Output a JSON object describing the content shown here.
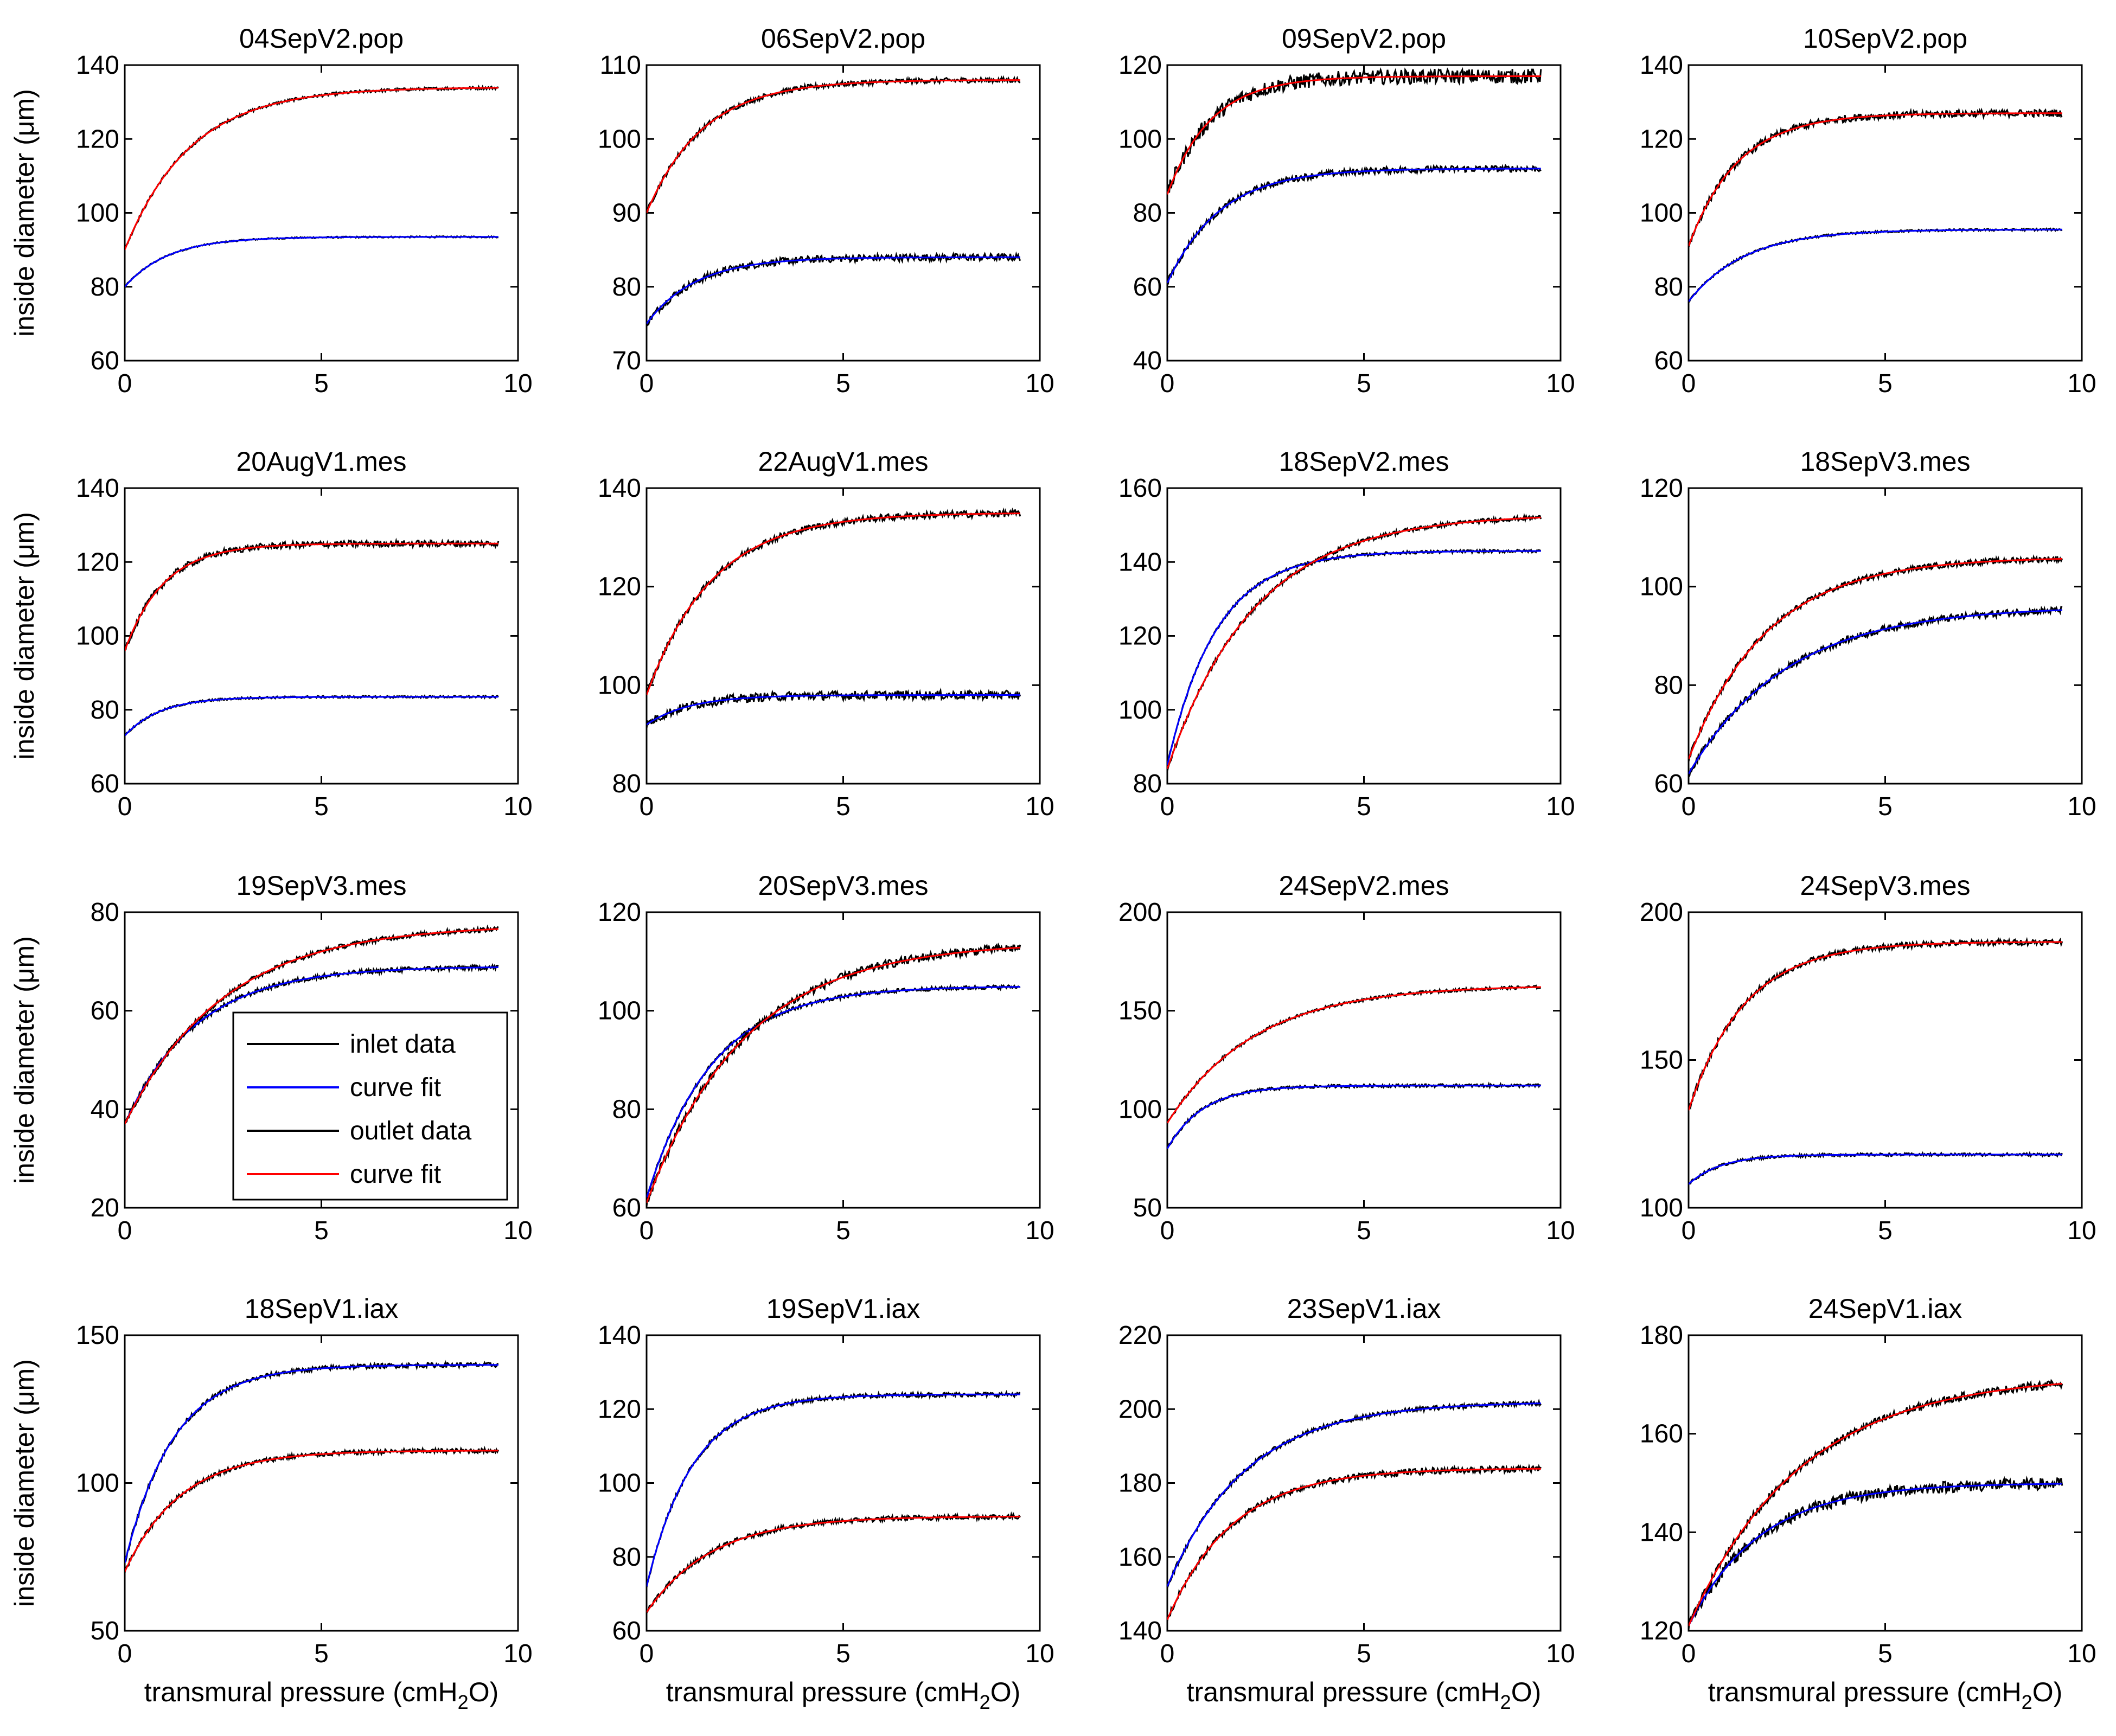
{
  "figure": {
    "ylabel_prefix": "inside diameter (",
    "ylabel_mu": "μ",
    "ylabel_suffix": "m)",
    "xlabel_prefix": "transmural pressure (cmH",
    "xlabel_sub": "2",
    "xlabel_suffix": "O)"
  },
  "colors": {
    "inlet_data": "#000000",
    "inlet_fit": "#0000ff",
    "outlet_data": "#000000",
    "outlet_fit": "#ff0000"
  },
  "legend": {
    "items": [
      "inlet data",
      "curve fit",
      "outlet data",
      "curve fit"
    ]
  },
  "chart_data": [
    {
      "type": "line",
      "title": "04SepV2.pop",
      "xlim": [
        0,
        10
      ],
      "ylim": [
        60,
        140
      ],
      "yticks": [
        60,
        80,
        100,
        120,
        140
      ],
      "xticks": [
        0,
        5,
        10
      ],
      "xmax": 9.5,
      "series": [
        {
          "name": "inlet",
          "y0": 80,
          "yinf": 93.5,
          "k": 0.9,
          "noise": 0.2
        },
        {
          "name": "outlet",
          "y0": 90,
          "yinf": 134,
          "k": 0.6,
          "noise": 0.4
        }
      ]
    },
    {
      "type": "line",
      "title": "06SepV2.pop",
      "xlim": [
        0,
        10
      ],
      "ylim": [
        70,
        110
      ],
      "yticks": [
        70,
        80,
        90,
        100,
        110
      ],
      "xticks": [
        0,
        5,
        10
      ],
      "xmax": 9.5,
      "series": [
        {
          "name": "inlet",
          "y0": 75,
          "yinf": 84,
          "k": 0.8,
          "noise": 0.5
        },
        {
          "name": "outlet",
          "y0": 90,
          "yinf": 108,
          "k": 0.7,
          "noise": 0.35
        }
      ]
    },
    {
      "type": "line",
      "title": "09SepV2.pop",
      "xlim": [
        0,
        10
      ],
      "ylim": [
        40,
        120
      ],
      "yticks": [
        40,
        60,
        80,
        100,
        120
      ],
      "xticks": [
        0,
        5,
        10
      ],
      "xmax": 9.5,
      "series": [
        {
          "name": "inlet",
          "y0": 61,
          "yinf": 92,
          "k": 0.75,
          "noise": 0.9
        },
        {
          "name": "outlet",
          "y0": 85,
          "yinf": 117,
          "k": 0.9,
          "noise": 2.0
        }
      ]
    },
    {
      "type": "line",
      "title": "10SepV2.pop",
      "xlim": [
        0,
        10
      ],
      "ylim": [
        60,
        140
      ],
      "yticks": [
        60,
        80,
        100,
        120,
        140
      ],
      "xticks": [
        0,
        5,
        10
      ],
      "xmax": 9.5,
      "series": [
        {
          "name": "inlet",
          "y0": 76,
          "yinf": 95.5,
          "k": 0.7,
          "noise": 0.3
        },
        {
          "name": "outlet",
          "y0": 91,
          "yinf": 127,
          "k": 0.8,
          "noise": 1.0
        }
      ]
    },
    {
      "type": "line",
      "title": "20AugV1.mes",
      "xlim": [
        0,
        10
      ],
      "ylim": [
        60,
        140
      ],
      "yticks": [
        60,
        80,
        100,
        120,
        140
      ],
      "xticks": [
        0,
        5,
        10
      ],
      "xmax": 9.5,
      "series": [
        {
          "name": "inlet",
          "y0": 73,
          "yinf": 83.5,
          "k": 1.1,
          "noise": 0.3
        },
        {
          "name": "outlet",
          "y0": 96,
          "yinf": 125,
          "k": 1.0,
          "noise": 0.9
        }
      ]
    },
    {
      "type": "line",
      "title": "22AugV1.mes",
      "xlim": [
        0,
        10
      ],
      "ylim": [
        80,
        140
      ],
      "yticks": [
        80,
        100,
        120,
        140
      ],
      "xticks": [
        0,
        5,
        10
      ],
      "xmax": 9.5,
      "series": [
        {
          "name": "inlet",
          "y0": 92,
          "yinf": 98,
          "k": 0.9,
          "noise": 0.9
        },
        {
          "name": "outlet",
          "y0": 98,
          "yinf": 135,
          "k": 0.6,
          "noise": 0.7
        }
      ]
    },
    {
      "type": "line",
      "title": "18SepV2.mes",
      "xlim": [
        0,
        10
      ],
      "ylim": [
        80,
        160
      ],
      "yticks": [
        80,
        100,
        120,
        140,
        160
      ],
      "xticks": [
        0,
        5,
        10
      ],
      "xmax": 9.5,
      "series": [
        {
          "name": "inlet",
          "y0": 85,
          "yinf": 143,
          "k": 0.8,
          "noise": 0.4
        },
        {
          "name": "outlet",
          "y0": 84,
          "yinf": 153,
          "k": 0.45,
          "noise": 0.6
        }
      ]
    },
    {
      "type": "line",
      "title": "18SepV3.mes",
      "xlim": [
        0,
        10
      ],
      "ylim": [
        60,
        120
      ],
      "yticks": [
        60,
        80,
        100,
        120
      ],
      "xticks": [
        0,
        5,
        10
      ],
      "xmax": 9.5,
      "series": [
        {
          "name": "inlet",
          "y0": 62,
          "yinf": 96,
          "k": 0.4,
          "noise": 0.7
        },
        {
          "name": "outlet",
          "y0": 65,
          "yinf": 106,
          "k": 0.5,
          "noise": 0.6
        }
      ]
    },
    {
      "type": "line",
      "title": "19SepV3.mes",
      "xlim": [
        0,
        10
      ],
      "ylim": [
        20,
        80
      ],
      "yticks": [
        20,
        40,
        60,
        80
      ],
      "xticks": [
        0,
        5,
        10
      ],
      "xmax": 9.5,
      "series": [
        {
          "name": "inlet",
          "y0": 37,
          "yinf": 69,
          "k": 0.55,
          "noise": 0.5
        },
        {
          "name": "outlet",
          "y0": 37,
          "yinf": 77.5,
          "k": 0.4,
          "noise": 0.5
        }
      ]
    },
    {
      "type": "line",
      "title": "20SepV3.mes",
      "xlim": [
        0,
        10
      ],
      "ylim": [
        60,
        120
      ],
      "yticks": [
        60,
        80,
        100,
        120
      ],
      "xticks": [
        0,
        5,
        10
      ],
      "xmax": 9.5,
      "series": [
        {
          "name": "inlet",
          "y0": 62,
          "yinf": 105,
          "k": 0.6,
          "noise": 0.4
        },
        {
          "name": "outlet",
          "y0": 61,
          "yinf": 114,
          "k": 0.4,
          "noise": 0.9
        }
      ]
    },
    {
      "type": "line",
      "title": "24SepV2.mes",
      "xlim": [
        0,
        10
      ],
      "ylim": [
        50,
        200
      ],
      "yticks": [
        50,
        100,
        150,
        200
      ],
      "xticks": [
        0,
        5,
        10
      ],
      "xmax": 9.5,
      "series": [
        {
          "name": "inlet",
          "y0": 80,
          "yinf": 112,
          "k": 1.1,
          "noise": 0.8
        },
        {
          "name": "outlet",
          "y0": 93,
          "yinf": 163,
          "k": 0.45,
          "noise": 0.8
        }
      ]
    },
    {
      "type": "line",
      "title": "24SepV3.mes",
      "xlim": [
        0,
        10
      ],
      "ylim": [
        100,
        200
      ],
      "yticks": [
        100,
        150,
        200
      ],
      "xticks": [
        0,
        5,
        10
      ],
      "xmax": 9.5,
      "series": [
        {
          "name": "inlet",
          "y0": 108,
          "yinf": 118,
          "k": 1.2,
          "noise": 0.5
        },
        {
          "name": "outlet",
          "y0": 133,
          "yinf": 190,
          "k": 0.7,
          "noise": 1.0
        }
      ]
    },
    {
      "type": "line",
      "title": "18SepV1.iax",
      "xlim": [
        0,
        10
      ],
      "ylim": [
        50,
        150
      ],
      "yticks": [
        50,
        100,
        150
      ],
      "xticks": [
        0,
        5,
        10
      ],
      "xmax": 9.5,
      "series": [
        {
          "name": "inlet",
          "y0": 73,
          "yinf": 140,
          "k": 0.8,
          "noise": 0.8
        },
        {
          "name": "outlet",
          "y0": 70,
          "yinf": 111,
          "k": 0.7,
          "noise": 0.8
        }
      ]
    },
    {
      "type": "line",
      "title": "19SepV1.iax",
      "xlim": [
        0,
        10
      ],
      "ylim": [
        60,
        140
      ],
      "yticks": [
        60,
        80,
        100,
        120,
        140
      ],
      "xticks": [
        0,
        5,
        10
      ],
      "xmax": 9.5,
      "series": [
        {
          "name": "inlet",
          "y0": 72,
          "yinf": 124,
          "k": 0.85,
          "noise": 0.6
        },
        {
          "name": "outlet",
          "y0": 65,
          "yinf": 91,
          "k": 0.6,
          "noise": 0.7
        }
      ]
    },
    {
      "type": "line",
      "title": "23SepV1.iax",
      "xlim": [
        0,
        10
      ],
      "ylim": [
        140,
        220
      ],
      "yticks": [
        140,
        160,
        180,
        200,
        220
      ],
      "xticks": [
        0,
        5,
        10
      ],
      "xmax": 9.5,
      "series": [
        {
          "name": "inlet",
          "y0": 152,
          "yinf": 202,
          "k": 0.5,
          "noise": 0.6
        },
        {
          "name": "outlet",
          "y0": 143,
          "yinf": 184,
          "k": 0.6,
          "noise": 0.9
        }
      ]
    },
    {
      "type": "line",
      "title": "24SepV1.iax",
      "xlim": [
        0,
        10
      ],
      "ylim": [
        120,
        180
      ],
      "yticks": [
        120,
        140,
        160,
        180
      ],
      "xticks": [
        0,
        5,
        10
      ],
      "xmax": 9.5,
      "series": [
        {
          "name": "inlet",
          "y0": 121,
          "yinf": 150,
          "k": 0.55,
          "noise": 1.2
        },
        {
          "name": "outlet",
          "y0": 121,
          "yinf": 172,
          "k": 0.35,
          "noise": 0.8
        }
      ]
    }
  ]
}
